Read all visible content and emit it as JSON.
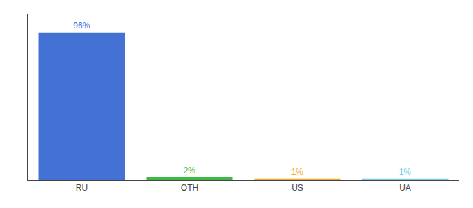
{
  "chart_data": {
    "type": "bar",
    "categories": [
      "RU",
      "OTH",
      "US",
      "UA"
    ],
    "values": [
      96,
      2,
      1,
      1
    ],
    "value_labels": [
      "96%",
      "2%",
      "1%",
      "1%"
    ],
    "data_labels": true,
    "colors": [
      "#4472d4",
      "#3cb843",
      "#f5a623",
      "#7ec8e3"
    ],
    "ylim": [
      0,
      108
    ],
    "grid": false,
    "tick_labels": "x"
  }
}
